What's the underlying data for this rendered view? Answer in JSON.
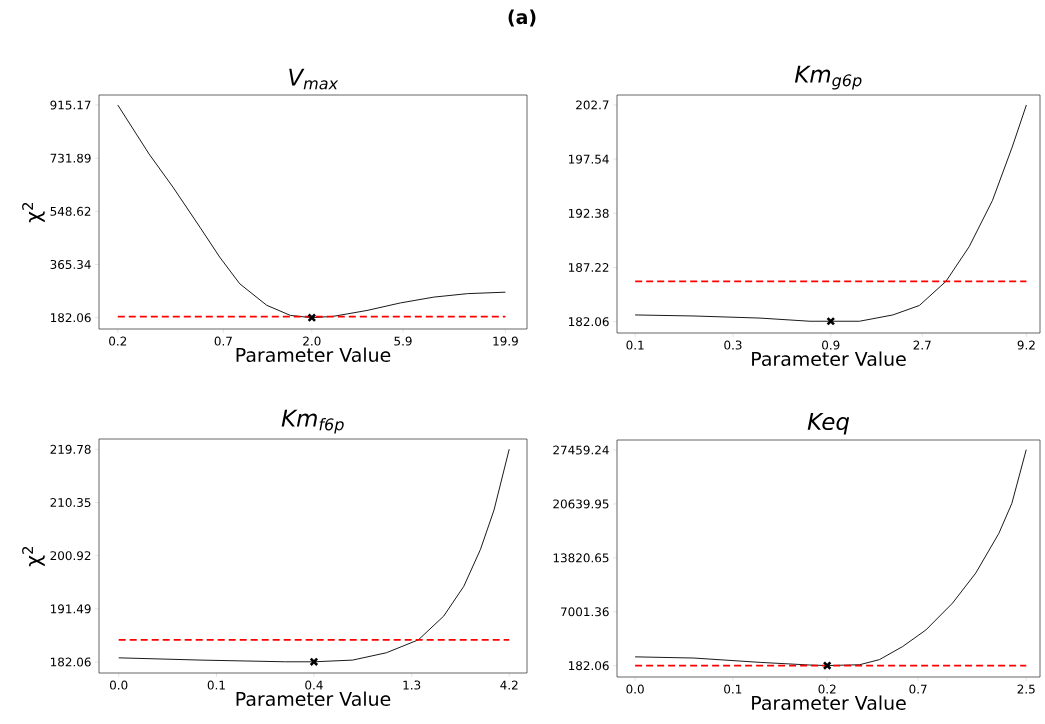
{
  "chart_data": [
    {
      "type": "line",
      "title": "V$_{max}$",
      "xlabel": "Parameter Value",
      "ylabel": "χ$^{2}$",
      "annotations": [
        "**(a)**"
      ],
      "log": "x",
      "xlim": [
        0.16,
        25.7
      ],
      "ylim": [
        143.1,
        949.6
      ],
      "xticks": [
        0.2,
        0.7,
        {
          "value": 2.0,
          "label": "2.0"
        },
        5.9,
        19.9
      ],
      "yticks": [
        182.06,
        365.34,
        548.62,
        731.89,
        915.17
      ],
      "series": [
        {
          "color": "#000000",
          "x": [
            0.2,
            0.29,
            0.385,
            0.53,
            0.67,
            0.85,
            1.17,
            1.55,
            2.0,
            2.59,
            3.85,
            5.72,
            8.5,
            12.7,
            19.9
          ],
          "values": [
            915,
            746,
            632,
            494,
            391,
            299,
            225,
            190,
            182,
            187,
            207,
            233,
            253,
            265,
            270
          ]
        },
        {
          "type": "scatter",
          "marker": "cross",
          "color": "#000000",
          "x": [
            2.0
          ],
          "values": [
            182
          ]
        }
      ],
      "ref_lines": [
        {
          "axis": "y",
          "value": 186,
          "color": "#ff0000",
          "line_style": "dashed"
        }
      ]
    },
    {
      "type": "line",
      "title": "Km$_{g6p}$",
      "xlabel": "Parameter Value",
      "log": "x",
      "xlim": [
        0.0743,
        10.8
      ],
      "ylim": [
        180.98,
        203.65
      ],
      "xticks": [
        {
          "value": 0.092,
          "label": "0.1"
        },
        {
          "value": 0.291,
          "label": "0.3"
        },
        {
          "value": 0.92,
          "label": "0.9"
        },
        2.7,
        9.2
      ],
      "yticks": [
        182.06,
        187.22,
        192.38,
        197.54,
        202.7
      ],
      "series": [
        {
          "color": "#000000",
          "x": [
            0.092,
            0.184,
            0.4,
            0.72,
            0.92,
            1.29,
            1.91,
            2.61,
            3.57,
            4.69,
            6.17,
            7.79,
            9.2
          ],
          "values": [
            182.7,
            182.6,
            182.4,
            182.1,
            182.1,
            182.1,
            182.7,
            183.6,
            185.9,
            189.2,
            193.6,
            198.7,
            202.7
          ]
        },
        {
          "type": "scatter",
          "marker": "cross",
          "color": "#000000",
          "x": [
            0.92
          ],
          "values": [
            182.1
          ]
        }
      ],
      "ref_lines": [
        {
          "axis": "y",
          "value": 185.9,
          "color": "#ff0000",
          "line_style": "dashed"
        }
      ]
    },
    {
      "type": "line",
      "title": "Km$_{f6p}$",
      "xlabel": "Parameter Value",
      "ylabel": "χ$^{2}$",
      "log": "x",
      "xlim": [
        0.0333,
        5.18
      ],
      "ylim": [
        180.11,
        221.61
      ],
      "xticks": [
        {
          "value": 0.042,
          "label": "0.0"
        },
        {
          "value": 0.133,
          "label": "0.1"
        },
        {
          "value": 0.42,
          "label": "0.4"
        },
        {
          "value": 1.33,
          "label": "1.3"
        },
        {
          "value": 4.2,
          "label": "4.2"
        }
      ],
      "yticks": [
        182.06,
        191.49,
        200.92,
        210.35,
        219.78
      ],
      "series": [
        {
          "color": "#000000",
          "x": [
            0.042,
            0.111,
            0.3,
            0.42,
            0.662,
            0.986,
            1.44,
            1.94,
            2.46,
            2.99,
            3.51,
            4.2
          ],
          "values": [
            182.8,
            182.4,
            182.1,
            182.1,
            182.4,
            183.7,
            186.0,
            190.2,
            195.5,
            202.0,
            209.0,
            219.8
          ]
        },
        {
          "type": "scatter",
          "marker": "cross",
          "color": "#000000",
          "x": [
            0.42
          ],
          "values": [
            182.1
          ]
        }
      ],
      "ref_lines": [
        {
          "axis": "y",
          "value": 186,
          "color": "#ff0000",
          "line_style": "dashed"
        }
      ]
    },
    {
      "type": "line",
      "title": "Keq",
      "xlabel": "Parameter Value",
      "log": "x",
      "xlim": [
        0.0202,
        2.94
      ],
      "ylim": [
        -1249,
        28722
      ],
      "xticks": [
        {
          "value": 0.025,
          "label": "0.0"
        },
        {
          "value": 0.079,
          "label": "0.1"
        },
        {
          "value": 0.24,
          "label": "0.2"
        },
        0.7,
        2.5
      ],
      "yticks": [
        182.06,
        7001.36,
        13820.65,
        20639.95,
        27459.24
      ],
      "series": [
        {
          "color": "#000000",
          "x": [
            0.025,
            0.0499,
            0.109,
            0.195,
            0.24,
            0.351,
            0.444,
            0.583,
            0.767,
            1.05,
            1.38,
            1.81,
            2.11,
            2.5
          ],
          "values": [
            1300,
            1150,
            600,
            270,
            200,
            300,
            950,
            2600,
            4700,
            8100,
            11900,
            16900,
            20700,
            27500
          ]
        },
        {
          "type": "scatter",
          "marker": "cross",
          "color": "#000000",
          "x": [
            0.24
          ],
          "values": [
            200
          ]
        }
      ],
      "ref_lines": [
        {
          "axis": "y",
          "value": 200,
          "color": "#ff0000",
          "line_style": "dashed"
        }
      ]
    }
  ]
}
